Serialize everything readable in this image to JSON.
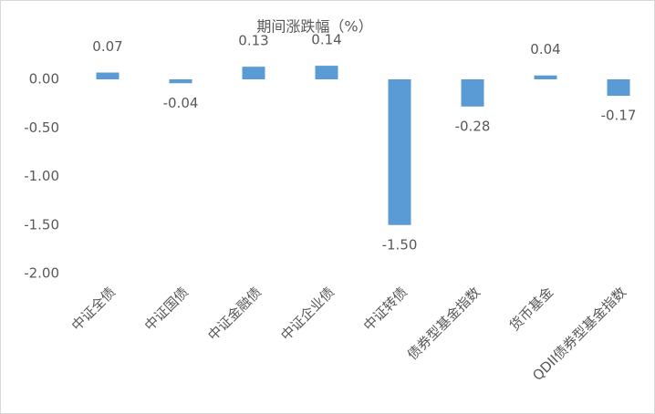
{
  "chart_data": {
    "type": "bar",
    "title": "期间涨跌幅（%）",
    "categories": [
      "中证全债",
      "中证国债",
      "中证金融债",
      "中证企业债",
      "中证转债",
      "债券型基金指数",
      "货币基金",
      "QDII债券型基金指数"
    ],
    "values": [
      0.07,
      -0.04,
      0.13,
      0.14,
      -1.5,
      -0.28,
      0.04,
      -0.17
    ],
    "value_labels": [
      "0.07",
      "-0.04",
      "0.13",
      "0.14",
      "-1.50",
      "-0.28",
      "0.04",
      "-0.17"
    ],
    "color": "#5b9bd5",
    "ylim": [
      -2,
      0.5
    ],
    "yticks": [
      {
        "value": 0,
        "label": "0.00"
      },
      {
        "value": -0.5,
        "label": "-0.50"
      },
      {
        "value": -1,
        "label": "-1.00"
      },
      {
        "value": -1.5,
        "label": "-1.50"
      },
      {
        "value": -2,
        "label": "-2.00"
      }
    ],
    "grid": false
  }
}
